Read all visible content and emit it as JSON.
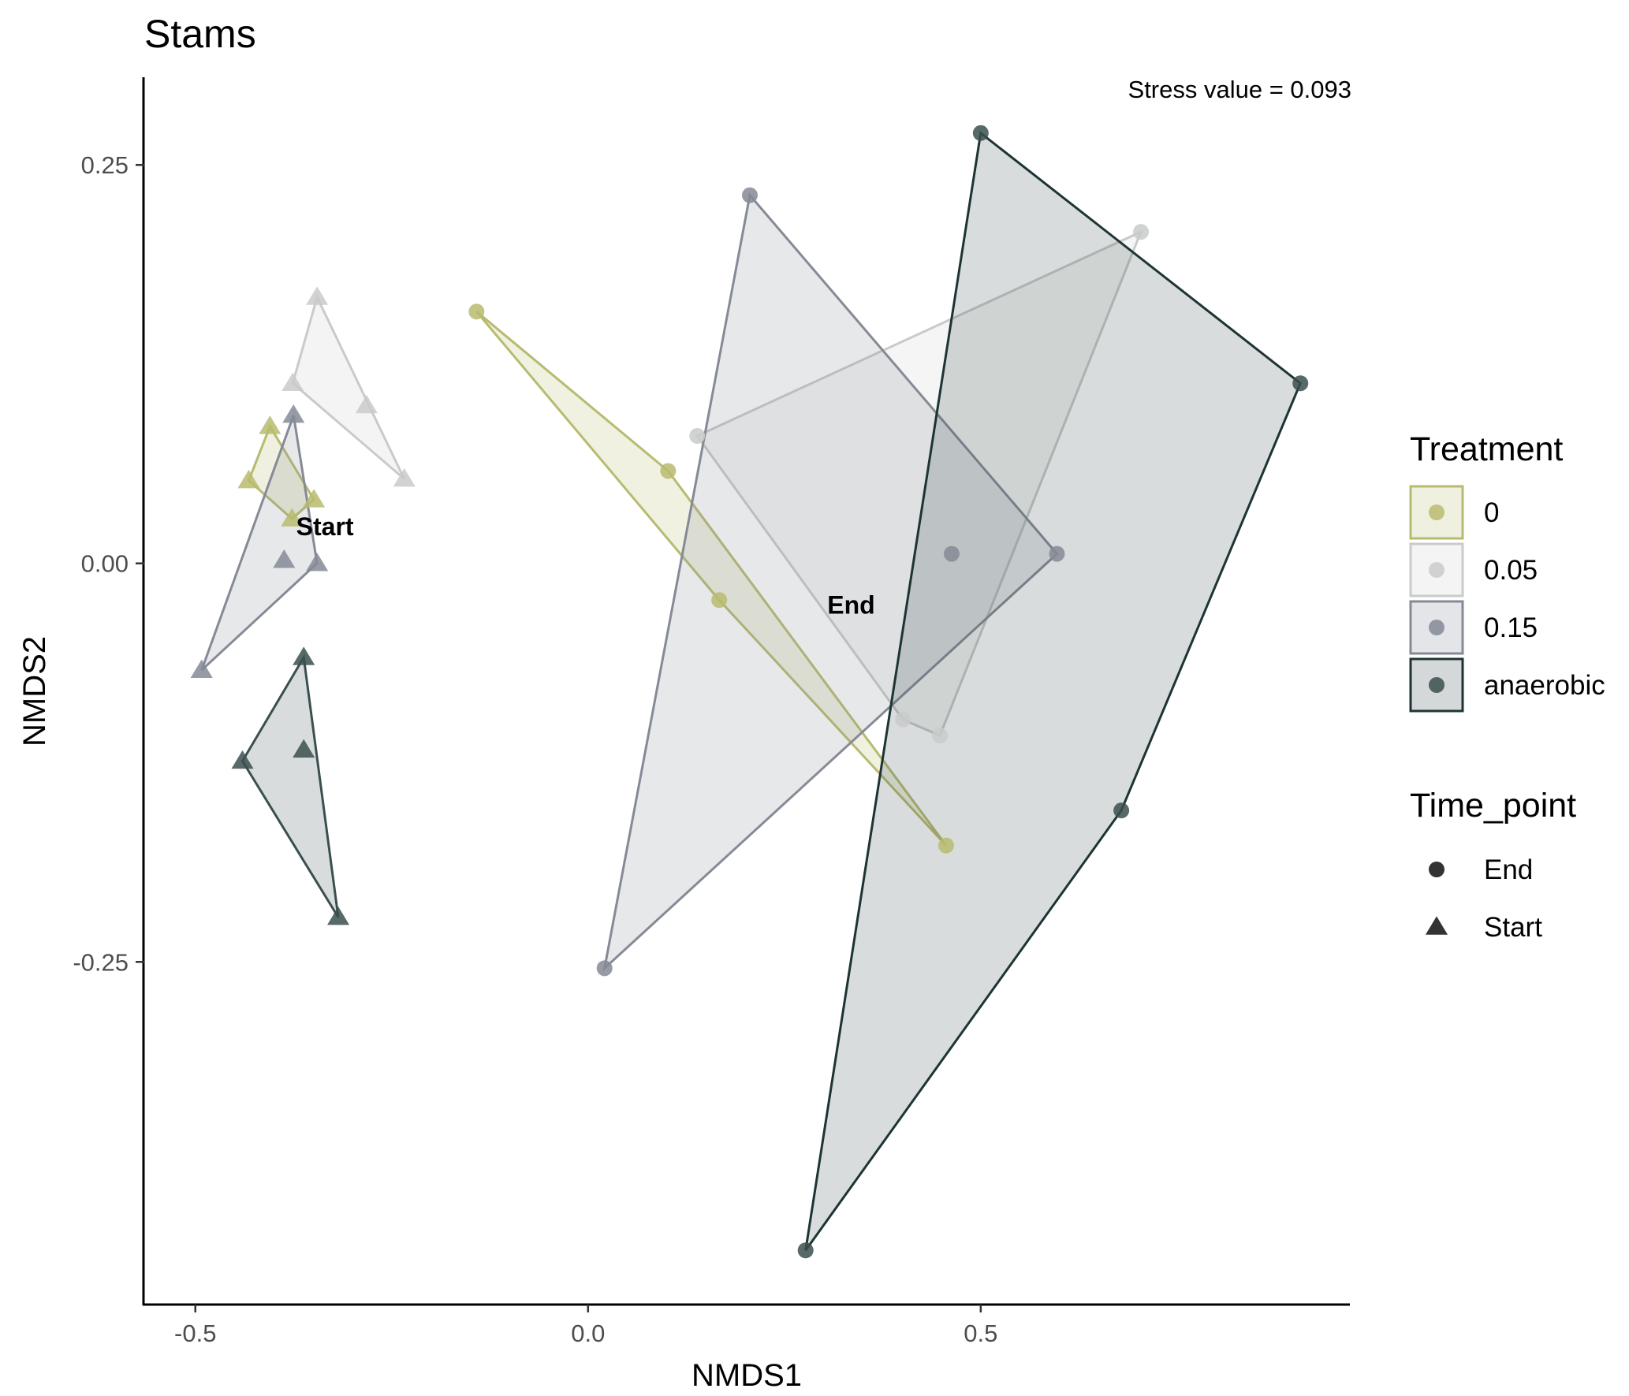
{
  "chart_data": {
    "type": "scatter",
    "title": "Stams",
    "xlabel": "NMDS1",
    "ylabel": "NMDS2",
    "xlim": [
      -0.565,
      0.97
    ],
    "ylim": [
      -0.465,
      0.305
    ],
    "x_ticks": [
      -0.5,
      0.0,
      0.5
    ],
    "y_ticks": [
      -0.25,
      0.0,
      0.25
    ],
    "x_tick_labels": [
      "-0.5",
      "0.0",
      "0.5"
    ],
    "y_tick_labels": [
      "-0.25",
      "0.00",
      "0.25"
    ],
    "grid": false,
    "legend_position": "right",
    "annotation": "Stress value = 0.093",
    "group_labels": [
      {
        "text": "Start",
        "x": -0.335,
        "y": 0.023
      },
      {
        "text": "End",
        "x": 0.335,
        "y": -0.026
      }
    ],
    "legends": [
      {
        "title": "Treatment",
        "entries": [
          {
            "label": "0",
            "fill": "#b8bb6f",
            "stroke": "#b8bb6f"
          },
          {
            "label": "0.05",
            "fill": "#c9cbca",
            "stroke": "#c9cbca"
          },
          {
            "label": "0.15",
            "fill": "#858a96",
            "stroke": "#858a96"
          },
          {
            "label": "anaerobic",
            "fill": "#3b4f4f",
            "stroke": "#1e3434"
          }
        ]
      },
      {
        "title": "Time_point",
        "entries": [
          {
            "label": "End",
            "shape": "circle"
          },
          {
            "label": "Start",
            "shape": "triangle"
          }
        ]
      }
    ],
    "series": [
      {
        "treatment": "0",
        "time_point": "Start",
        "color": "#b8bb6f",
        "hull_fill": "#b8bb6f",
        "hull_opacity": 0.22,
        "points": [
          [
            -0.405,
            0.086
          ],
          [
            -0.432,
            0.052
          ],
          [
            -0.377,
            0.028
          ],
          [
            -0.349,
            0.04
          ]
        ],
        "hull": [
          [
            -0.405,
            0.086
          ],
          [
            -0.432,
            0.052
          ],
          [
            -0.377,
            0.028
          ],
          [
            -0.349,
            0.04
          ]
        ]
      },
      {
        "treatment": "0.05",
        "time_point": "Start",
        "color": "#c9cbca",
        "hull_fill": "#c9cbca",
        "hull_opacity": 0.22,
        "points": [
          [
            -0.345,
            0.167
          ],
          [
            -0.376,
            0.113
          ],
          [
            -0.282,
            0.099
          ],
          [
            -0.234,
            0.053
          ]
        ],
        "hull": [
          [
            -0.345,
            0.167
          ],
          [
            -0.376,
            0.113
          ],
          [
            -0.234,
            0.053
          ]
        ]
      },
      {
        "treatment": "0.15",
        "time_point": "Start",
        "color": "#858a96",
        "hull_fill": "#858a96",
        "hull_opacity": 0.2,
        "points": [
          [
            -0.375,
            0.093
          ],
          [
            -0.387,
            0.002
          ],
          [
            -0.345,
            0.0
          ],
          [
            -0.492,
            -0.067
          ]
        ],
        "hull": [
          [
            -0.375,
            0.093
          ],
          [
            -0.345,
            0.0
          ],
          [
            -0.492,
            -0.067
          ]
        ]
      },
      {
        "treatment": "anaerobic",
        "time_point": "Start",
        "color": "#3b4f4f",
        "hull_fill": "#3b4f4f",
        "hull_opacity": 0.2,
        "points": [
          [
            -0.362,
            -0.059
          ],
          [
            -0.44,
            -0.124
          ],
          [
            -0.362,
            -0.117
          ],
          [
            -0.318,
            -0.222
          ]
        ],
        "hull": [
          [
            -0.362,
            -0.059
          ],
          [
            -0.44,
            -0.124
          ],
          [
            -0.318,
            -0.222
          ]
        ]
      },
      {
        "treatment": "0",
        "time_point": "End",
        "color": "#b8bb6f",
        "hull_fill": "#b8bb6f",
        "hull_opacity": 0.2,
        "points": [
          [
            -0.142,
            0.158
          ],
          [
            0.102,
            0.058
          ],
          [
            0.167,
            -0.023
          ],
          [
            0.456,
            -0.177
          ]
        ],
        "hull": [
          [
            -0.142,
            0.158
          ],
          [
            0.102,
            0.058
          ],
          [
            0.456,
            -0.177
          ],
          [
            0.167,
            -0.023
          ]
        ]
      },
      {
        "treatment": "0.05",
        "time_point": "End",
        "color": "#c9cbca",
        "hull_fill": "#c9cbca",
        "hull_opacity": 0.2,
        "points": [
          [
            0.139,
            0.08
          ],
          [
            0.704,
            0.208
          ],
          [
            0.401,
            -0.098
          ],
          [
            0.448,
            -0.108
          ]
        ],
        "hull": [
          [
            0.139,
            0.08
          ],
          [
            0.704,
            0.208
          ],
          [
            0.448,
            -0.108
          ],
          [
            0.401,
            -0.098
          ]
        ]
      },
      {
        "treatment": "0.15",
        "time_point": "End",
        "color": "#858a96",
        "hull_fill": "#858a96",
        "hull_opacity": 0.2,
        "points": [
          [
            0.206,
            0.231
          ],
          [
            0.463,
            0.006
          ],
          [
            0.597,
            0.006
          ],
          [
            0.021,
            -0.254
          ]
        ],
        "hull": [
          [
            0.206,
            0.231
          ],
          [
            0.597,
            0.006
          ],
          [
            0.021,
            -0.254
          ]
        ]
      },
      {
        "treatment": "anaerobic",
        "time_point": "End",
        "color": "#3b4f4f",
        "hull_fill": "#3b4f4f",
        "hull_opacity": 0.2,
        "hull_stroke": "#1e3434",
        "points": [
          [
            0.5,
            0.27
          ],
          [
            0.907,
            0.113
          ],
          [
            0.679,
            -0.155
          ],
          [
            0.277,
            -0.431
          ]
        ],
        "hull": [
          [
            0.5,
            0.27
          ],
          [
            0.907,
            0.113
          ],
          [
            0.679,
            -0.155
          ],
          [
            0.277,
            -0.431
          ]
        ]
      }
    ]
  }
}
